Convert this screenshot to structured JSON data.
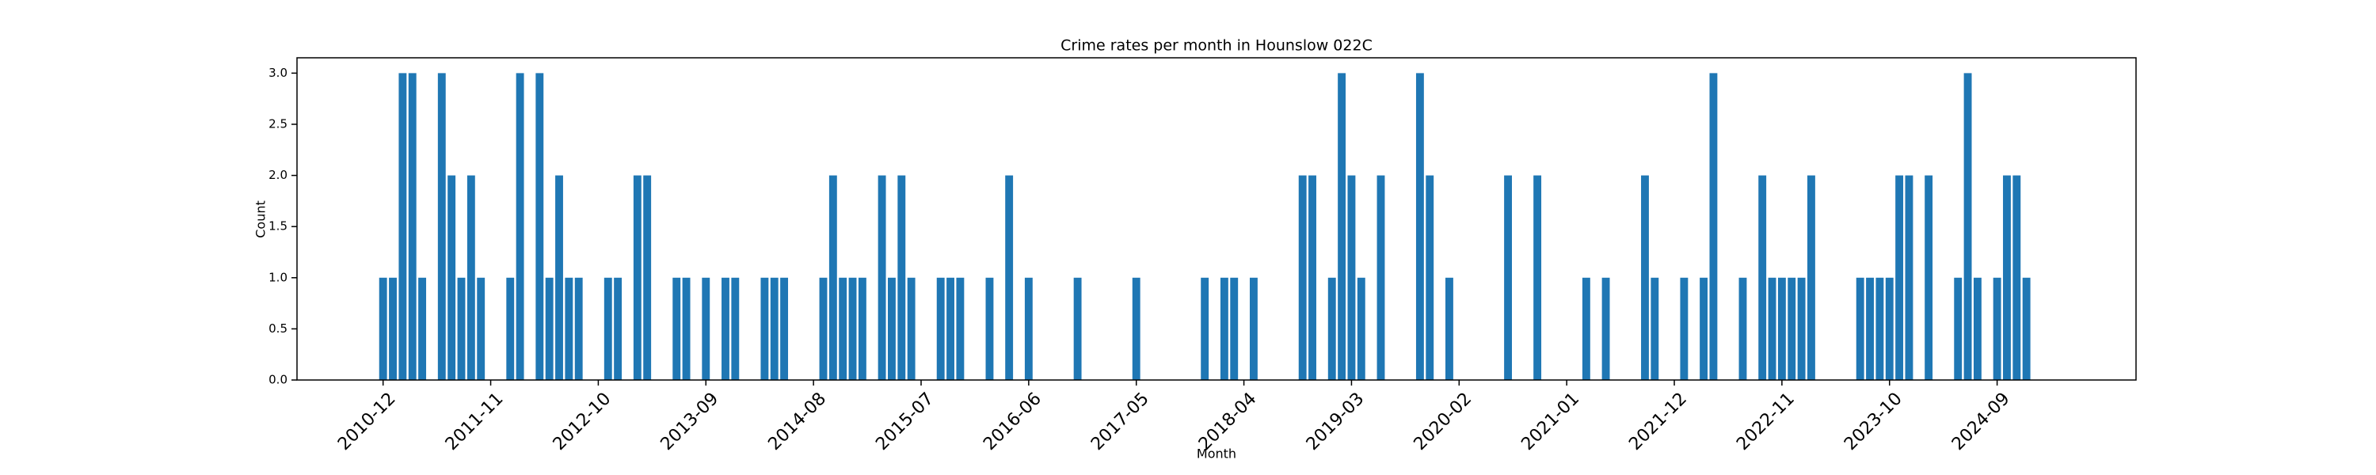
{
  "chart_data": {
    "type": "bar",
    "title": "Crime rates per month in Hounslow 022C",
    "xlabel": "Month",
    "ylabel": "Count",
    "color": "#1f77b4",
    "categories": [
      "2010-12",
      null,
      null,
      null,
      null,
      null,
      null,
      null,
      null,
      null,
      null,
      "2011-11",
      null,
      null,
      null,
      null,
      null,
      null,
      null,
      null,
      null,
      null,
      "2012-10",
      null,
      null,
      null,
      null,
      null,
      null,
      null,
      null,
      null,
      null,
      "2013-09",
      null,
      null,
      null,
      null,
      null,
      null,
      null,
      null,
      null,
      null,
      "2014-08",
      null,
      null,
      null,
      null,
      null,
      null,
      null,
      null,
      null,
      null,
      "2015-07",
      null,
      null,
      null,
      null,
      null,
      null,
      null,
      null,
      null,
      null,
      "2016-06",
      null,
      null,
      null,
      null,
      null,
      null,
      null,
      null,
      null,
      null,
      "2017-05",
      null,
      null,
      null,
      null,
      null,
      null,
      null,
      null,
      null,
      null,
      "2018-04",
      null,
      null,
      null,
      null,
      null,
      null,
      null,
      null,
      null,
      null,
      "2019-03",
      null,
      null,
      null,
      null,
      null,
      null,
      null,
      null,
      null,
      null,
      "2020-02",
      null,
      null,
      null,
      null,
      null,
      null,
      null,
      null,
      null,
      null,
      "2021-01",
      null,
      null,
      null,
      null,
      null,
      null,
      null,
      null,
      null,
      null,
      "2021-12",
      null,
      null,
      null,
      null,
      null,
      null,
      null,
      null,
      null,
      null,
      "2022-11",
      null,
      null,
      null,
      null,
      null,
      null,
      null,
      null,
      null,
      null,
      "2023-10",
      null,
      null,
      null,
      null,
      null,
      null,
      null,
      null,
      null,
      null,
      "2024-09",
      null,
      null,
      null
    ],
    "values": [
      1,
      1,
      3,
      3,
      1,
      0,
      3,
      2,
      1,
      2,
      1,
      0,
      0,
      1,
      3,
      0,
      3,
      1,
      2,
      1,
      1,
      0,
      0,
      1,
      1,
      0,
      2,
      2,
      0,
      0,
      1,
      1,
      0,
      1,
      0,
      1,
      1,
      0,
      0,
      1,
      1,
      1,
      0,
      0,
      0,
      1,
      2,
      1,
      1,
      1,
      0,
      2,
      1,
      2,
      1,
      0,
      0,
      1,
      1,
      1,
      0,
      0,
      1,
      0,
      2,
      0,
      1,
      0,
      0,
      0,
      0,
      1,
      0,
      0,
      0,
      0,
      0,
      1,
      0,
      0,
      0,
      0,
      0,
      0,
      1,
      0,
      1,
      1,
      0,
      1,
      0,
      0,
      0,
      0,
      2,
      2,
      0,
      1,
      3,
      2,
      1,
      0,
      2,
      0,
      0,
      0,
      3,
      2,
      0,
      1,
      0,
      0,
      0,
      0,
      0,
      2,
      0,
      0,
      2,
      0,
      0,
      0,
      0,
      1,
      0,
      1,
      0,
      0,
      0,
      2,
      1,
      0,
      0,
      1,
      0,
      1,
      3,
      0,
      0,
      1,
      0,
      2,
      1,
      1,
      1,
      1,
      2,
      0,
      0,
      0,
      0,
      1,
      1,
      1,
      1,
      2,
      2,
      0,
      2,
      0,
      0,
      1,
      3,
      1,
      0,
      1,
      2,
      2,
      1
    ],
    "ylim": [
      0,
      3.15
    ],
    "yticks": [
      {
        "value": 0,
        "label": "0.0"
      },
      {
        "value": 0.5,
        "label": "0.5"
      },
      {
        "value": 1,
        "label": "1.0"
      },
      {
        "value": 1.5,
        "label": "1.5"
      },
      {
        "value": 2,
        "label": "2.0"
      },
      {
        "value": 2.5,
        "label": "2.5"
      },
      {
        "value": 3,
        "label": "3.0"
      }
    ]
  }
}
